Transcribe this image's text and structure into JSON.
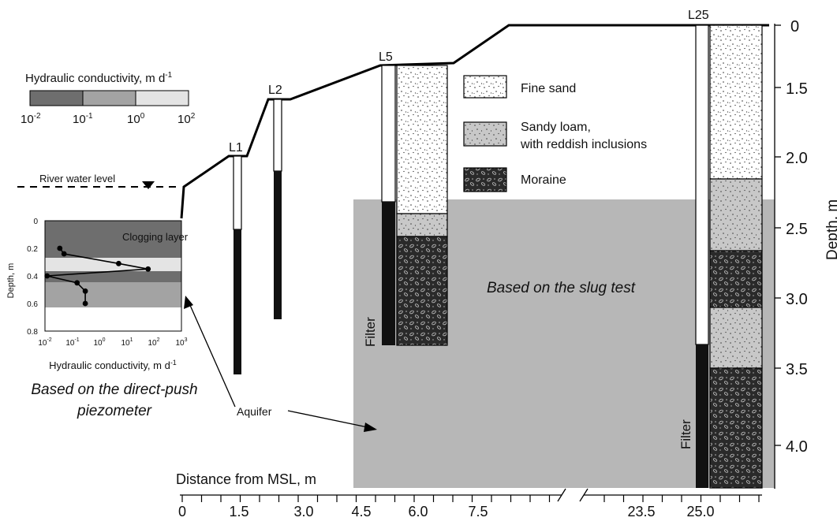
{
  "wells": {
    "l1": "L1",
    "l2": "L2",
    "l5": "L5",
    "l25": "L25"
  },
  "legend": {
    "fine_sand": "Fine sand",
    "sandy_loam_line1": "Sandy loam,",
    "sandy_loam_line2": "with reddish inclusions",
    "moraine": "Moraine"
  },
  "colorbar": {
    "title_main": "Hydraulic conductivity,  m d",
    "title_sup": "-1",
    "ticks": [
      {
        "base": "10",
        "exp": "-2"
      },
      {
        "base": "10",
        "exp": "-1"
      },
      {
        "base": "10",
        "exp": "0"
      },
      {
        "base": "10",
        "exp": "2"
      }
    ],
    "colors": [
      "#6e6e6e",
      "#a3a3a3",
      "#e4e4e4"
    ]
  },
  "annotations": {
    "river_water_level": "River water level",
    "slug_test": "Based on the slug test",
    "direct_push_line1": "Based on the direct-push",
    "direct_push_line2": "piezometer",
    "aquifer": "Aquifer",
    "filter_l5": "Filter",
    "filter_l25": "Filter"
  },
  "depth_axis": {
    "label": "Depth, m",
    "ticks": [
      "0",
      "1.5",
      "2.0",
      "2.5",
      "3.0",
      "3.5",
      "4.0"
    ]
  },
  "distance_axis": {
    "label": "Distance from MSL, m",
    "ticks": [
      "0",
      "1.5",
      "3.0",
      "4.5",
      "6.0",
      "7.5",
      "23.5",
      "25.0"
    ]
  },
  "inset": {
    "clogging_layer": "Clogging layer",
    "ylabel": "Depth, m",
    "xlabel_main": "Hydraulic conductivity,  m d",
    "xlabel_sup": "-1",
    "yticks": [
      "0",
      "0.2",
      "0.4",
      "0.6",
      "0.8"
    ],
    "xticks": [
      {
        "base": "10",
        "exp": "-2"
      },
      {
        "base": "10",
        "exp": "-1"
      },
      {
        "base": "10",
        "exp": "0"
      },
      {
        "base": "10",
        "exp": "1"
      },
      {
        "base": "10",
        "exp": "2"
      },
      {
        "base": "10",
        "exp": "3"
      }
    ]
  },
  "chart_data": {
    "type": "line",
    "xlabel": "Hydraulic conductivity,  m d-1",
    "ylabel": "Depth, m",
    "x_scale": "log",
    "xlim": [
      0.01,
      1000
    ],
    "ylim": [
      0.8,
      0
    ],
    "annotations": [
      "Clogging layer"
    ],
    "series": [
      {
        "points": [
          {
            "x": 0.035,
            "y": 0.2
          },
          {
            "x": 0.05,
            "y": 0.24
          },
          {
            "x": 5,
            "y": 0.31
          },
          {
            "x": 60,
            "y": 0.35
          },
          {
            "x": 0.012,
            "y": 0.4
          },
          {
            "x": 0.15,
            "y": 0.45
          },
          {
            "x": 0.3,
            "y": 0.51
          },
          {
            "x": 0.3,
            "y": 0.6
          }
        ]
      }
    ]
  }
}
